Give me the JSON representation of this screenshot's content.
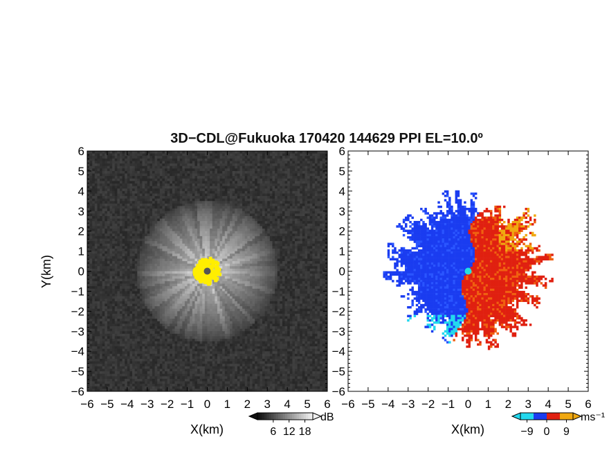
{
  "chart_data": [
    {
      "type": "heatmap",
      "title": "3D−CDL@Fukuoka 170420 144629 PPI EL=10.0º",
      "panel": "left",
      "xlabel": "X(km)",
      "ylabel": "Y(km)",
      "xlim": [
        -6,
        6
      ],
      "ylim": [
        -6,
        6
      ],
      "xticks": [
        "−6",
        "−5",
        "−4",
        "−3",
        "−2",
        "−1",
        "0",
        "1",
        "2",
        "3",
        "4",
        "5",
        "6"
      ],
      "yticks": [
        "6",
        "5",
        "4",
        "3",
        "2",
        "1",
        "0",
        "−1",
        "−2",
        "−3",
        "−4",
        "−5",
        "−6"
      ],
      "colormap": "grayscale",
      "colorbar": {
        "unit": "dB",
        "ticks": [
          "6",
          "12",
          "18"
        ],
        "range": [
          0,
          21
        ],
        "colors": [
          "#101010",
          "#f0f0f0"
        ]
      },
      "features": {
        "center_marker_color": "#555555",
        "center_echo_color": "#ffee00",
        "echo_radius_km": 3.5
      },
      "grid": false
    },
    {
      "type": "heatmap",
      "panel": "right",
      "xlabel": "X(km)",
      "ylabel": "",
      "xlim": [
        -6,
        6
      ],
      "ylim": [
        -6,
        6
      ],
      "xticks": [
        "−6",
        "−5",
        "−4",
        "−3",
        "−2",
        "−1",
        "0",
        "1",
        "2",
        "3",
        "4",
        "5",
        "6"
      ],
      "yticks": [
        "6",
        "5",
        "4",
        "3",
        "2",
        "1",
        "0",
        "−1",
        "−2",
        "−3",
        "−4",
        "−5",
        "−6"
      ],
      "colormap": "doppler-velocity",
      "colorbar": {
        "unit": "ms⁻¹",
        "ticks": [
          "−9",
          "0",
          "9"
        ],
        "range": [
          -12,
          12
        ],
        "colors": [
          "#22d8ee",
          "#1a3cf0",
          "#e02010",
          "#f0a810"
        ]
      },
      "features": {
        "negative_side": "west",
        "positive_side": "east",
        "center_marker_color": "#22e0e0",
        "echo_radius_km": 4.2
      },
      "grid": false
    }
  ]
}
